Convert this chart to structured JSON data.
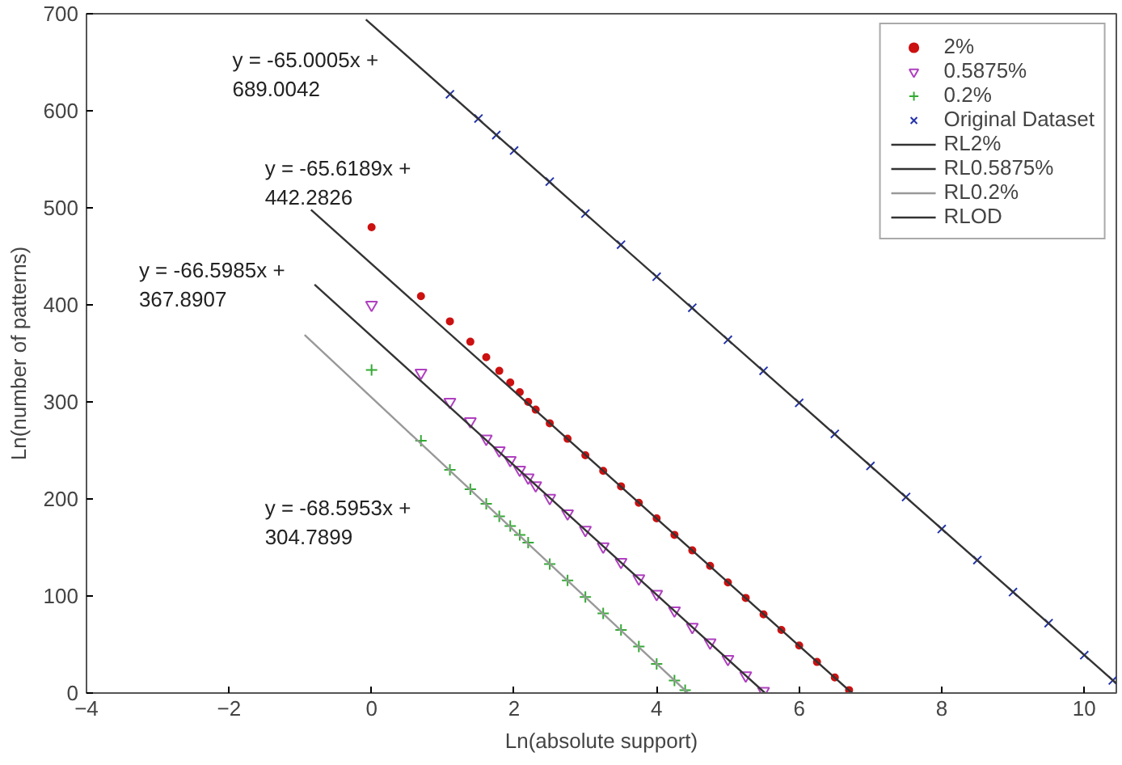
{
  "chart_data": {
    "type": "scatter",
    "xlabel": "Ln(absolute support)",
    "ylabel": "Ln(number of patterns)",
    "xlim": [
      -4,
      10.45
    ],
    "ylim": [
      0,
      700
    ],
    "xticks": [
      -4,
      -2,
      0,
      2,
      4,
      6,
      8,
      10
    ],
    "yticks": [
      0,
      100,
      200,
      300,
      400,
      500,
      600,
      700
    ],
    "grid": false,
    "legend": "top right",
    "series": [
      {
        "name": "2%",
        "marker": "circle",
        "color": "#cc1111",
        "x": [
          0,
          0.693,
          1.099,
          1.386,
          1.609,
          1.792,
          1.946,
          2.079,
          2.197,
          2.303,
          2.5,
          2.75,
          3,
          3.25,
          3.5,
          3.75,
          4,
          4.25,
          4.5,
          4.75,
          5,
          5.25,
          5.5,
          5.75,
          6,
          6.25,
          6.5,
          6.7
        ],
        "values": [
          480,
          409,
          383,
          362,
          346,
          332,
          320,
          310,
          300,
          292,
          278,
          262,
          245,
          229,
          213,
          196,
          180,
          163,
          147,
          131,
          114,
          98,
          81,
          65,
          49,
          32,
          16,
          3
        ]
      },
      {
        "name": "0.5875%",
        "marker": "triangle",
        "color": "#b040c0",
        "x": [
          0,
          0.693,
          1.099,
          1.386,
          1.609,
          1.792,
          1.946,
          2.079,
          2.197,
          2.303,
          2.5,
          2.75,
          3,
          3.25,
          3.5,
          3.75,
          4,
          4.25,
          4.5,
          4.75,
          5,
          5.25,
          5.5
        ],
        "values": [
          400,
          330,
          300,
          280,
          262,
          250,
          240,
          230,
          222,
          214,
          201,
          185,
          168,
          151,
          135,
          118,
          102,
          85,
          68,
          52,
          35,
          18,
          2
        ]
      },
      {
        "name": "0.2%",
        "marker": "cross",
        "color": "#33aa33",
        "x": [
          0,
          0.693,
          1.099,
          1.386,
          1.609,
          1.792,
          1.946,
          2.079,
          2.197,
          2.5,
          2.75,
          3,
          3.25,
          3.5,
          3.75,
          4,
          4.25,
          4.4
        ],
        "values": [
          333,
          260,
          230,
          210,
          195,
          182,
          172,
          163,
          155,
          133,
          116,
          99,
          82,
          65,
          48,
          30,
          13,
          3
        ]
      },
      {
        "name": "Original Dataset",
        "marker": "x",
        "color": "#2233aa",
        "x": [
          1.1,
          1.5,
          1.75,
          2,
          2.5,
          3,
          3.5,
          4,
          4.5,
          5,
          5.5,
          6,
          6.5,
          7,
          7.5,
          8,
          8.5,
          9,
          9.5,
          10,
          10.4
        ],
        "values": [
          617,
          592,
          575,
          559,
          527,
          494,
          462,
          429,
          397,
          364,
          332,
          299,
          267,
          234,
          202,
          169,
          137,
          104,
          72,
          39,
          13
        ]
      },
      {
        "name": "RL2%",
        "type": "line",
        "color": "#333333",
        "x": [
          -0.85,
          6.74
        ],
        "values": [
          498,
          0
        ]
      },
      {
        "name": "RL0.5875%",
        "type": "line",
        "color": "#333333",
        "x": [
          -0.8,
          5.52
        ],
        "values": [
          421,
          0
        ]
      },
      {
        "name": "RL0.2%",
        "type": "line",
        "color": "#999999",
        "x": [
          -0.94,
          4.44
        ],
        "values": [
          369,
          0
        ]
      },
      {
        "name": "RLOD",
        "type": "line",
        "color": "#333333",
        "x": [
          -0.08,
          10.45
        ],
        "values": [
          694,
          10
        ]
      }
    ],
    "annotations": [
      "y = -65.0005x +\n689.0042",
      "y = -65.6189x +\n442.2826",
      "y = -66.5985x +\n367.8907",
      "y = -68.5953x +\n304.7899"
    ]
  }
}
